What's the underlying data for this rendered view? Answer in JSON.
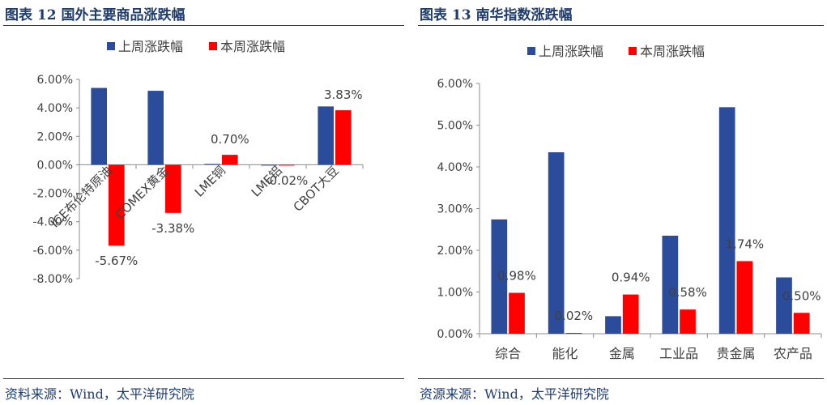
{
  "left": {
    "figure_title": "图表 12 国外主要商品涨跌幅",
    "source": "资料来源：Wind，太平洋研究院",
    "colors": {
      "series1": "#2b4c9b",
      "series2": "#ff0000"
    },
    "chart_data": {
      "type": "bar",
      "categories": [
        "ICE布伦特原油",
        "COMEX黄金",
        "LME铜",
        "LME铝",
        "CBOT大豆"
      ],
      "series": [
        {
          "name": "上周涨跌幅",
          "values": [
            5.4,
            5.2,
            0.06,
            -0.02,
            4.1
          ],
          "labels": [
            "",
            "",
            "",
            "",
            ""
          ]
        },
        {
          "name": "本周涨跌幅",
          "values": [
            -5.67,
            -3.38,
            0.7,
            -0.02,
            3.83
          ],
          "labels": [
            "-5.67%",
            "-3.38%",
            "0.70%",
            "-0.02%",
            "3.83%"
          ]
        }
      ],
      "ylim": [
        -8,
        6
      ],
      "yticks": [
        "6.00%",
        "4.00%",
        "2.00%",
        "0.00%",
        "-2.00%",
        "-4.00%",
        "-6.00%",
        "-8.00%"
      ],
      "legend_position": "top",
      "grid": false
    }
  },
  "right": {
    "figure_title": "图表 13 南华指数涨跌幅",
    "source": "资源来源：Wind，太平洋研究院",
    "colors": {
      "series1": "#2b4c9b",
      "series2": "#ff0000"
    },
    "chart_data": {
      "type": "bar",
      "categories": [
        "综合",
        "能化",
        "金属",
        "工业品",
        "贵金属",
        "农产品"
      ],
      "series": [
        {
          "name": "上周涨跌幅",
          "values": [
            2.74,
            4.35,
            0.42,
            2.35,
            5.43,
            1.35
          ],
          "labels": [
            "",
            "",
            "",
            "",
            "",
            ""
          ]
        },
        {
          "name": "本周涨跌幅",
          "values": [
            0.98,
            0.02,
            0.94,
            0.58,
            1.74,
            0.5
          ],
          "labels": [
            "0.98%",
            "0.02%",
            "0.94%",
            "0.58%",
            "1.74%",
            "0.50%"
          ]
        }
      ],
      "ylim": [
        0,
        6
      ],
      "yticks": [
        "6.00%",
        "5.00%",
        "4.00%",
        "3.00%",
        "2.00%",
        "1.00%",
        "0.00%"
      ],
      "legend_position": "top",
      "grid": false
    }
  }
}
